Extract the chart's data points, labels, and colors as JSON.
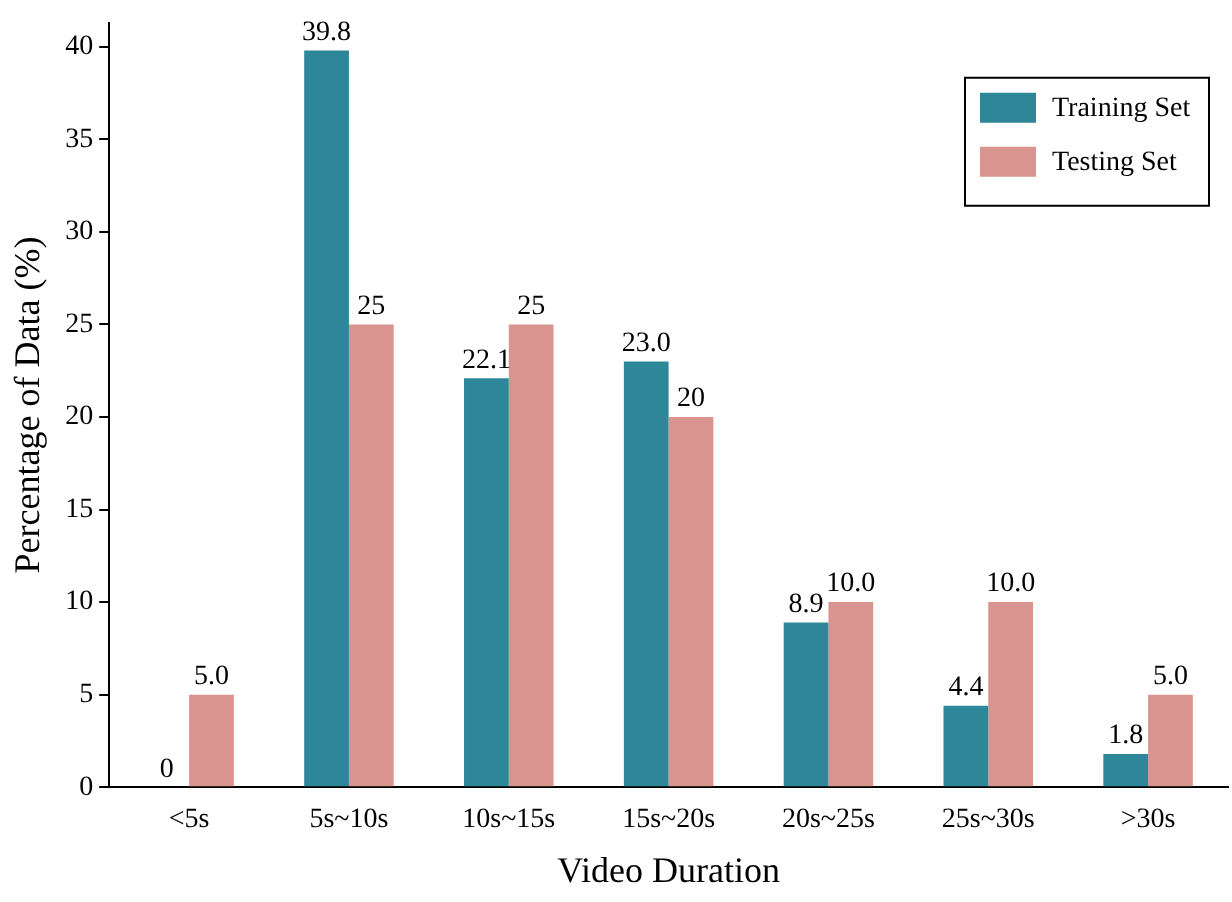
{
  "chart_data": {
    "type": "bar",
    "xlabel": "Video Duration",
    "ylabel": "Percentage of Data (%)",
    "categories": [
      "<5s",
      "5s~10s",
      "10s~15s",
      "15s~20s",
      "20s~25s",
      "25s~30s",
      ">30s"
    ],
    "series": [
      {
        "name": "Training Set",
        "color": "#2e8799",
        "values": [
          0,
          39.8,
          22.1,
          23.0,
          8.9,
          4.4,
          1.8
        ],
        "value_labels": [
          "0",
          "39.8",
          "22.1",
          "23.0",
          "8.9",
          "4.4",
          "1.8"
        ]
      },
      {
        "name": "Testing Set",
        "color": "#d9948f",
        "values": [
          5.0,
          25,
          25,
          20,
          10.0,
          10.0,
          5.0
        ],
        "value_labels": [
          "5.0",
          "25",
          "25",
          "20",
          "10.0",
          "10.0",
          "5.0"
        ]
      }
    ],
    "ylim": [
      0,
      41.3
    ],
    "yticks": [
      0,
      5,
      10,
      15,
      20,
      25,
      30,
      35,
      40
    ],
    "legend": "top right",
    "grid": false
  }
}
